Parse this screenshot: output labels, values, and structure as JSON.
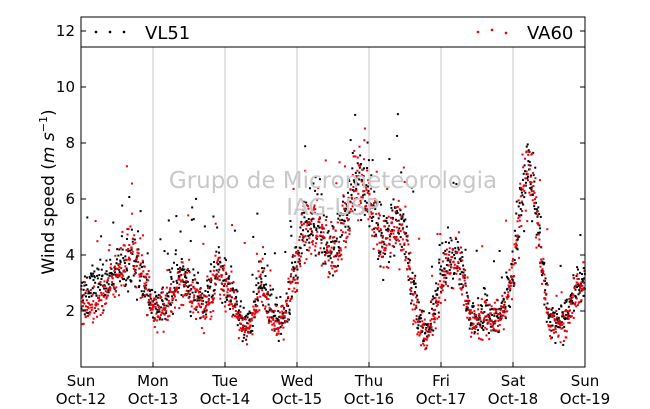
{
  "chart_data": {
    "type": "scatter",
    "title": "",
    "ylabel_main": "Wind speed (",
    "ylabel_unit": "m s",
    "ylabel_exp": "−1",
    "ylabel_close": ")",
    "ylim": [
      0,
      12.5
    ],
    "yticks": [
      2,
      4,
      6,
      8,
      10,
      12
    ],
    "xlim": [
      0,
      7
    ],
    "xticks": [
      {
        "day": "Sun",
        "date": "Oct-12"
      },
      {
        "day": "Mon",
        "date": "Oct-13"
      },
      {
        "day": "Tue",
        "date": "Oct-14"
      },
      {
        "day": "Wed",
        "date": "Oct-15"
      },
      {
        "day": "Thu",
        "date": "Oct-16"
      },
      {
        "day": "Fri",
        "date": "Oct-17"
      },
      {
        "day": "Sat",
        "date": "Oct-18"
      },
      {
        "day": "Sun",
        "date": "Oct-19"
      }
    ],
    "vertical_grid": true,
    "legend_position": "top",
    "watermark_line1": "Grupo de Micrometeorologia",
    "watermark_line2": "IAG-USP",
    "series": [
      {
        "name": "VL51",
        "color": "#000000",
        "marker": "square",
        "profile_x": [
          0.0,
          0.1,
          0.2,
          0.3,
          0.4,
          0.5,
          0.6,
          0.7,
          0.8,
          0.9,
          1.0,
          1.1,
          1.2,
          1.3,
          1.4,
          1.5,
          1.6,
          1.7,
          1.8,
          1.9,
          2.0,
          2.1,
          2.2,
          2.3,
          2.4,
          2.5,
          2.6,
          2.7,
          2.8,
          2.9,
          3.0,
          3.1,
          3.2,
          3.3,
          3.4,
          3.5,
          3.6,
          3.7,
          3.8,
          3.9,
          4.0,
          4.1,
          4.2,
          4.3,
          4.4,
          4.5,
          4.6,
          4.7,
          4.8,
          4.9,
          5.0,
          5.1,
          5.2,
          5.3,
          5.4,
          5.5,
          5.6,
          5.7,
          5.8,
          5.9,
          6.0,
          6.1,
          6.2,
          6.3,
          6.4,
          6.5,
          6.6,
          6.7,
          6.8,
          6.9,
          7.0
        ],
        "profile_y": [
          2.5,
          2.8,
          3.0,
          2.8,
          3.2,
          3.5,
          3.8,
          4.0,
          3.6,
          2.8,
          2.3,
          2.2,
          2.4,
          3.0,
          3.2,
          3.0,
          2.6,
          2.2,
          2.8,
          3.4,
          3.2,
          2.6,
          1.8,
          1.4,
          2.0,
          3.2,
          2.4,
          1.6,
          1.8,
          2.8,
          3.8,
          5.0,
          5.2,
          5.0,
          4.5,
          4.2,
          4.6,
          5.6,
          6.5,
          6.8,
          6.2,
          5.0,
          4.5,
          4.8,
          5.2,
          4.6,
          3.0,
          1.6,
          1.2,
          2.0,
          3.2,
          3.8,
          4.0,
          3.4,
          2.0,
          1.8,
          2.0,
          1.6,
          2.0,
          2.4,
          3.5,
          6.0,
          7.0,
          6.2,
          4.0,
          1.8,
          1.5,
          1.6,
          2.2,
          3.0,
          3.2
        ]
      },
      {
        "name": "VA60",
        "color": "#e8000b",
        "marker": "square",
        "profile_x": [
          0.0,
          0.1,
          0.2,
          0.3,
          0.4,
          0.5,
          0.6,
          0.7,
          0.8,
          0.9,
          1.0,
          1.1,
          1.2,
          1.3,
          1.4,
          1.5,
          1.6,
          1.7,
          1.8,
          1.9,
          2.0,
          2.1,
          2.2,
          2.3,
          2.4,
          2.5,
          2.6,
          2.7,
          2.8,
          2.9,
          3.0,
          3.1,
          3.2,
          3.3,
          3.4,
          3.5,
          3.6,
          3.7,
          3.8,
          3.9,
          4.0,
          4.1,
          4.2,
          4.3,
          4.4,
          4.5,
          4.6,
          4.7,
          4.8,
          4.9,
          5.0,
          5.1,
          5.2,
          5.3,
          5.4,
          5.5,
          5.6,
          5.7,
          5.8,
          5.9,
          6.0,
          6.1,
          6.2,
          6.3,
          6.4,
          6.5,
          6.6,
          6.7,
          6.8,
          6.9,
          7.0
        ],
        "profile_y": [
          2.2,
          2.2,
          2.2,
          2.4,
          3.0,
          3.2,
          3.6,
          4.2,
          3.8,
          2.8,
          2.1,
          2.0,
          2.2,
          2.6,
          3.0,
          2.8,
          2.4,
          2.0,
          2.6,
          3.2,
          3.0,
          2.4,
          1.7,
          1.3,
          1.8,
          3.0,
          2.2,
          1.5,
          1.6,
          2.6,
          3.6,
          4.8,
          5.0,
          4.8,
          4.3,
          4.0,
          4.4,
          5.4,
          6.3,
          6.6,
          6.0,
          4.8,
          4.2,
          4.6,
          5.0,
          4.4,
          2.8,
          1.5,
          1.0,
          1.8,
          3.0,
          3.6,
          3.8,
          3.2,
          1.8,
          1.6,
          1.8,
          1.5,
          1.8,
          2.2,
          3.2,
          5.8,
          6.8,
          6.0,
          3.8,
          1.6,
          1.4,
          1.4,
          2.0,
          2.8,
          3.0
        ]
      }
    ]
  }
}
